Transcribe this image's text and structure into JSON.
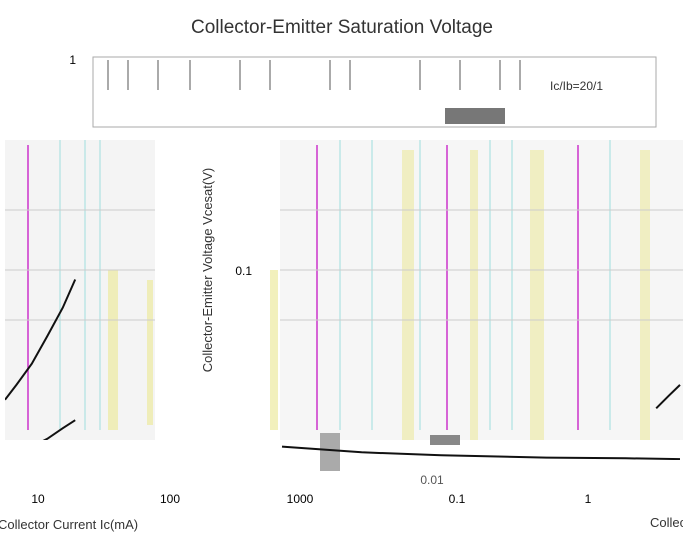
{
  "chart_data": [
    {
      "type": "line",
      "title": "Collector-Emitter Saturation Voltage",
      "xlabel": "Collector Current   Ic(mA)",
      "ylabel": "Collector-Emitter Voltage   Vcesat(V)",
      "x_scale": "log",
      "y_scale": "log",
      "x_ticks": [
        "10",
        "100",
        "1000"
      ],
      "y_ticks": [
        "1",
        "0.1",
        "0.01"
      ],
      "xlim": [
        3,
        2000
      ],
      "ylim": [
        0.01,
        1
      ],
      "legend_text": "Ic/Ib=20/1",
      "series": [
        {
          "color": "#111111",
          "x": [
            3,
            5,
            10,
            20,
            40,
            70
          ],
          "y": [
            0.022,
            0.026,
            0.033,
            0.045,
            0.062,
            0.085
          ]
        },
        {
          "color": "#111111",
          "x": [
            3,
            6,
            10,
            20,
            40,
            70
          ],
          "y": [
            0.0115,
            0.0122,
            0.013,
            0.0142,
            0.016,
            0.0175
          ]
        }
      ]
    },
    {
      "type": "line",
      "title": "",
      "xlabel": "Collector",
      "ylabel": "",
      "x_scale": "log",
      "y_scale": "log",
      "x_ticks": [
        "0.1",
        "1"
      ],
      "y_ticks": [
        "0.01"
      ],
      "xlim": [
        0.05,
        1.6
      ],
      "ylim": [
        0.01,
        1
      ],
      "series": [
        {
          "color": "#111111",
          "x": [
            0.05,
            0.1,
            0.2,
            0.5,
            1,
            1.6
          ],
          "y": [
            0.013,
            0.0122,
            0.0118,
            0.0115,
            0.0114,
            0.0113
          ]
        },
        {
          "color": "#111111",
          "x": [
            1.3,
            1.45,
            1.6
          ],
          "y": [
            0.02,
            0.023,
            0.026
          ]
        }
      ]
    }
  ]
}
